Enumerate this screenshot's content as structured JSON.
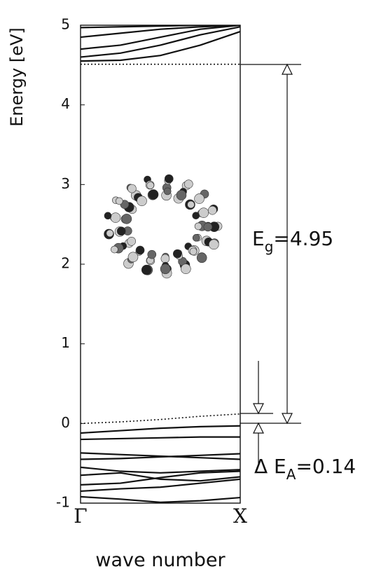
{
  "chart_data": {
    "type": "line",
    "y_label": "Energy [eV]",
    "x_label": "wave number",
    "x": [
      0,
      0.25,
      0.5,
      0.75,
      1
    ],
    "xlim": [
      0,
      1
    ],
    "xticks": [
      {
        "value": 0,
        "label": "Γ"
      },
      {
        "value": 1,
        "label": "X"
      }
    ],
    "ylim": [
      -1,
      5
    ],
    "yticks": [
      -1,
      0,
      1,
      2,
      3,
      4,
      5
    ],
    "series": [
      {
        "color": "#111",
        "style": "solid",
        "values": [
          -0.12,
          -0.09,
          -0.06,
          -0.04,
          -0.03
        ]
      },
      {
        "color": "#111",
        "style": "solid",
        "values": [
          -0.2,
          -0.19,
          -0.18,
          -0.17,
          -0.17
        ]
      },
      {
        "color": "#111",
        "style": "solid",
        "values": [
          -0.37,
          -0.39,
          -0.41,
          -0.43,
          -0.45
        ]
      },
      {
        "color": "#111",
        "style": "solid",
        "values": [
          -0.45,
          -0.44,
          -0.42,
          -0.4,
          -0.38
        ]
      },
      {
        "color": "#111",
        "style": "solid",
        "values": [
          -0.55,
          -0.6,
          -0.62,
          -0.6,
          -0.58
        ]
      },
      {
        "color": "#111",
        "style": "solid",
        "values": [
          -0.65,
          -0.62,
          -0.7,
          -0.72,
          -0.67
        ]
      },
      {
        "color": "#111",
        "style": "solid",
        "values": [
          -0.77,
          -0.75,
          -0.68,
          -0.62,
          -0.6
        ]
      },
      {
        "color": "#111",
        "style": "solid",
        "values": [
          -0.85,
          -0.82,
          -0.8,
          -0.75,
          -0.7
        ]
      },
      {
        "color": "#111",
        "style": "solid",
        "values": [
          -0.92,
          -0.95,
          -0.99,
          -0.97,
          -0.93
        ]
      },
      {
        "color": "#111",
        "style": "dotted",
        "values": [
          0.0,
          0.02,
          0.05,
          0.09,
          0.12
        ]
      },
      {
        "color": "#111",
        "style": "dotted",
        "values": [
          4.51,
          4.51,
          4.51,
          4.51,
          4.51
        ]
      },
      {
        "color": "#111",
        "style": "solid",
        "values": [
          4.55,
          4.56,
          4.62,
          4.75,
          4.92
        ]
      },
      {
        "color": "#111",
        "style": "solid",
        "values": [
          4.6,
          4.65,
          4.75,
          4.88,
          4.98
        ]
      },
      {
        "color": "#111",
        "style": "solid",
        "values": [
          4.7,
          4.75,
          4.85,
          4.95,
          5.0
        ]
      },
      {
        "color": "#111",
        "style": "solid",
        "values": [
          4.85,
          4.9,
          4.95,
          4.98,
          5.0
        ]
      },
      {
        "color": "#111",
        "style": "solid",
        "values": [
          4.97,
          4.98,
          4.99,
          5.0,
          5.0
        ]
      }
    ],
    "annotations": {
      "gap": {
        "main": "E",
        "sub": "g",
        "rest": "=4.95"
      },
      "shift": {
        "main": "Δ E",
        "sub": "A",
        "rest": "=0.14"
      }
    }
  }
}
